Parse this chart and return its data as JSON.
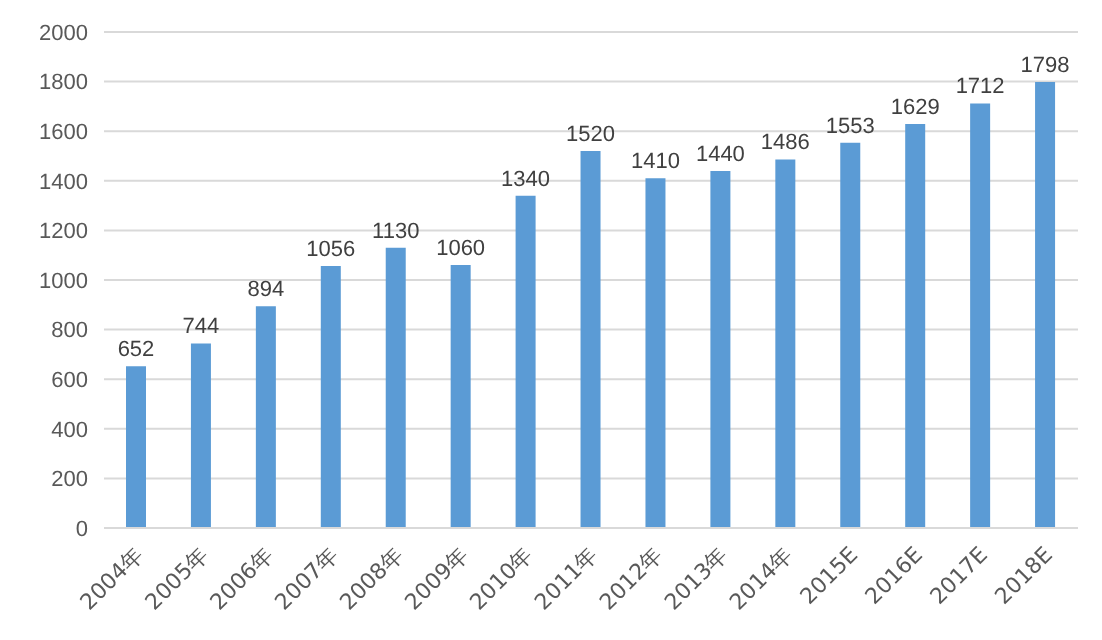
{
  "chart_data": {
    "type": "bar",
    "categories": [
      "2004年",
      "2005年",
      "2006年",
      "2007年",
      "2008年",
      "2009年",
      "2010年",
      "2011年",
      "2012年",
      "2013年",
      "2014年",
      "2015E",
      "2016E",
      "2017E",
      "2018E"
    ],
    "values": [
      652,
      744,
      894,
      1056,
      1130,
      1060,
      1340,
      1520,
      1410,
      1440,
      1486,
      1553,
      1629,
      1712,
      1798
    ],
    "color": "#5b9bd5",
    "ylim": [
      0,
      2000
    ],
    "yticks": [
      0,
      200,
      400,
      600,
      800,
      1000,
      1200,
      1400,
      1600,
      1800,
      2000
    ],
    "grid": "y",
    "data_labels": true
  }
}
